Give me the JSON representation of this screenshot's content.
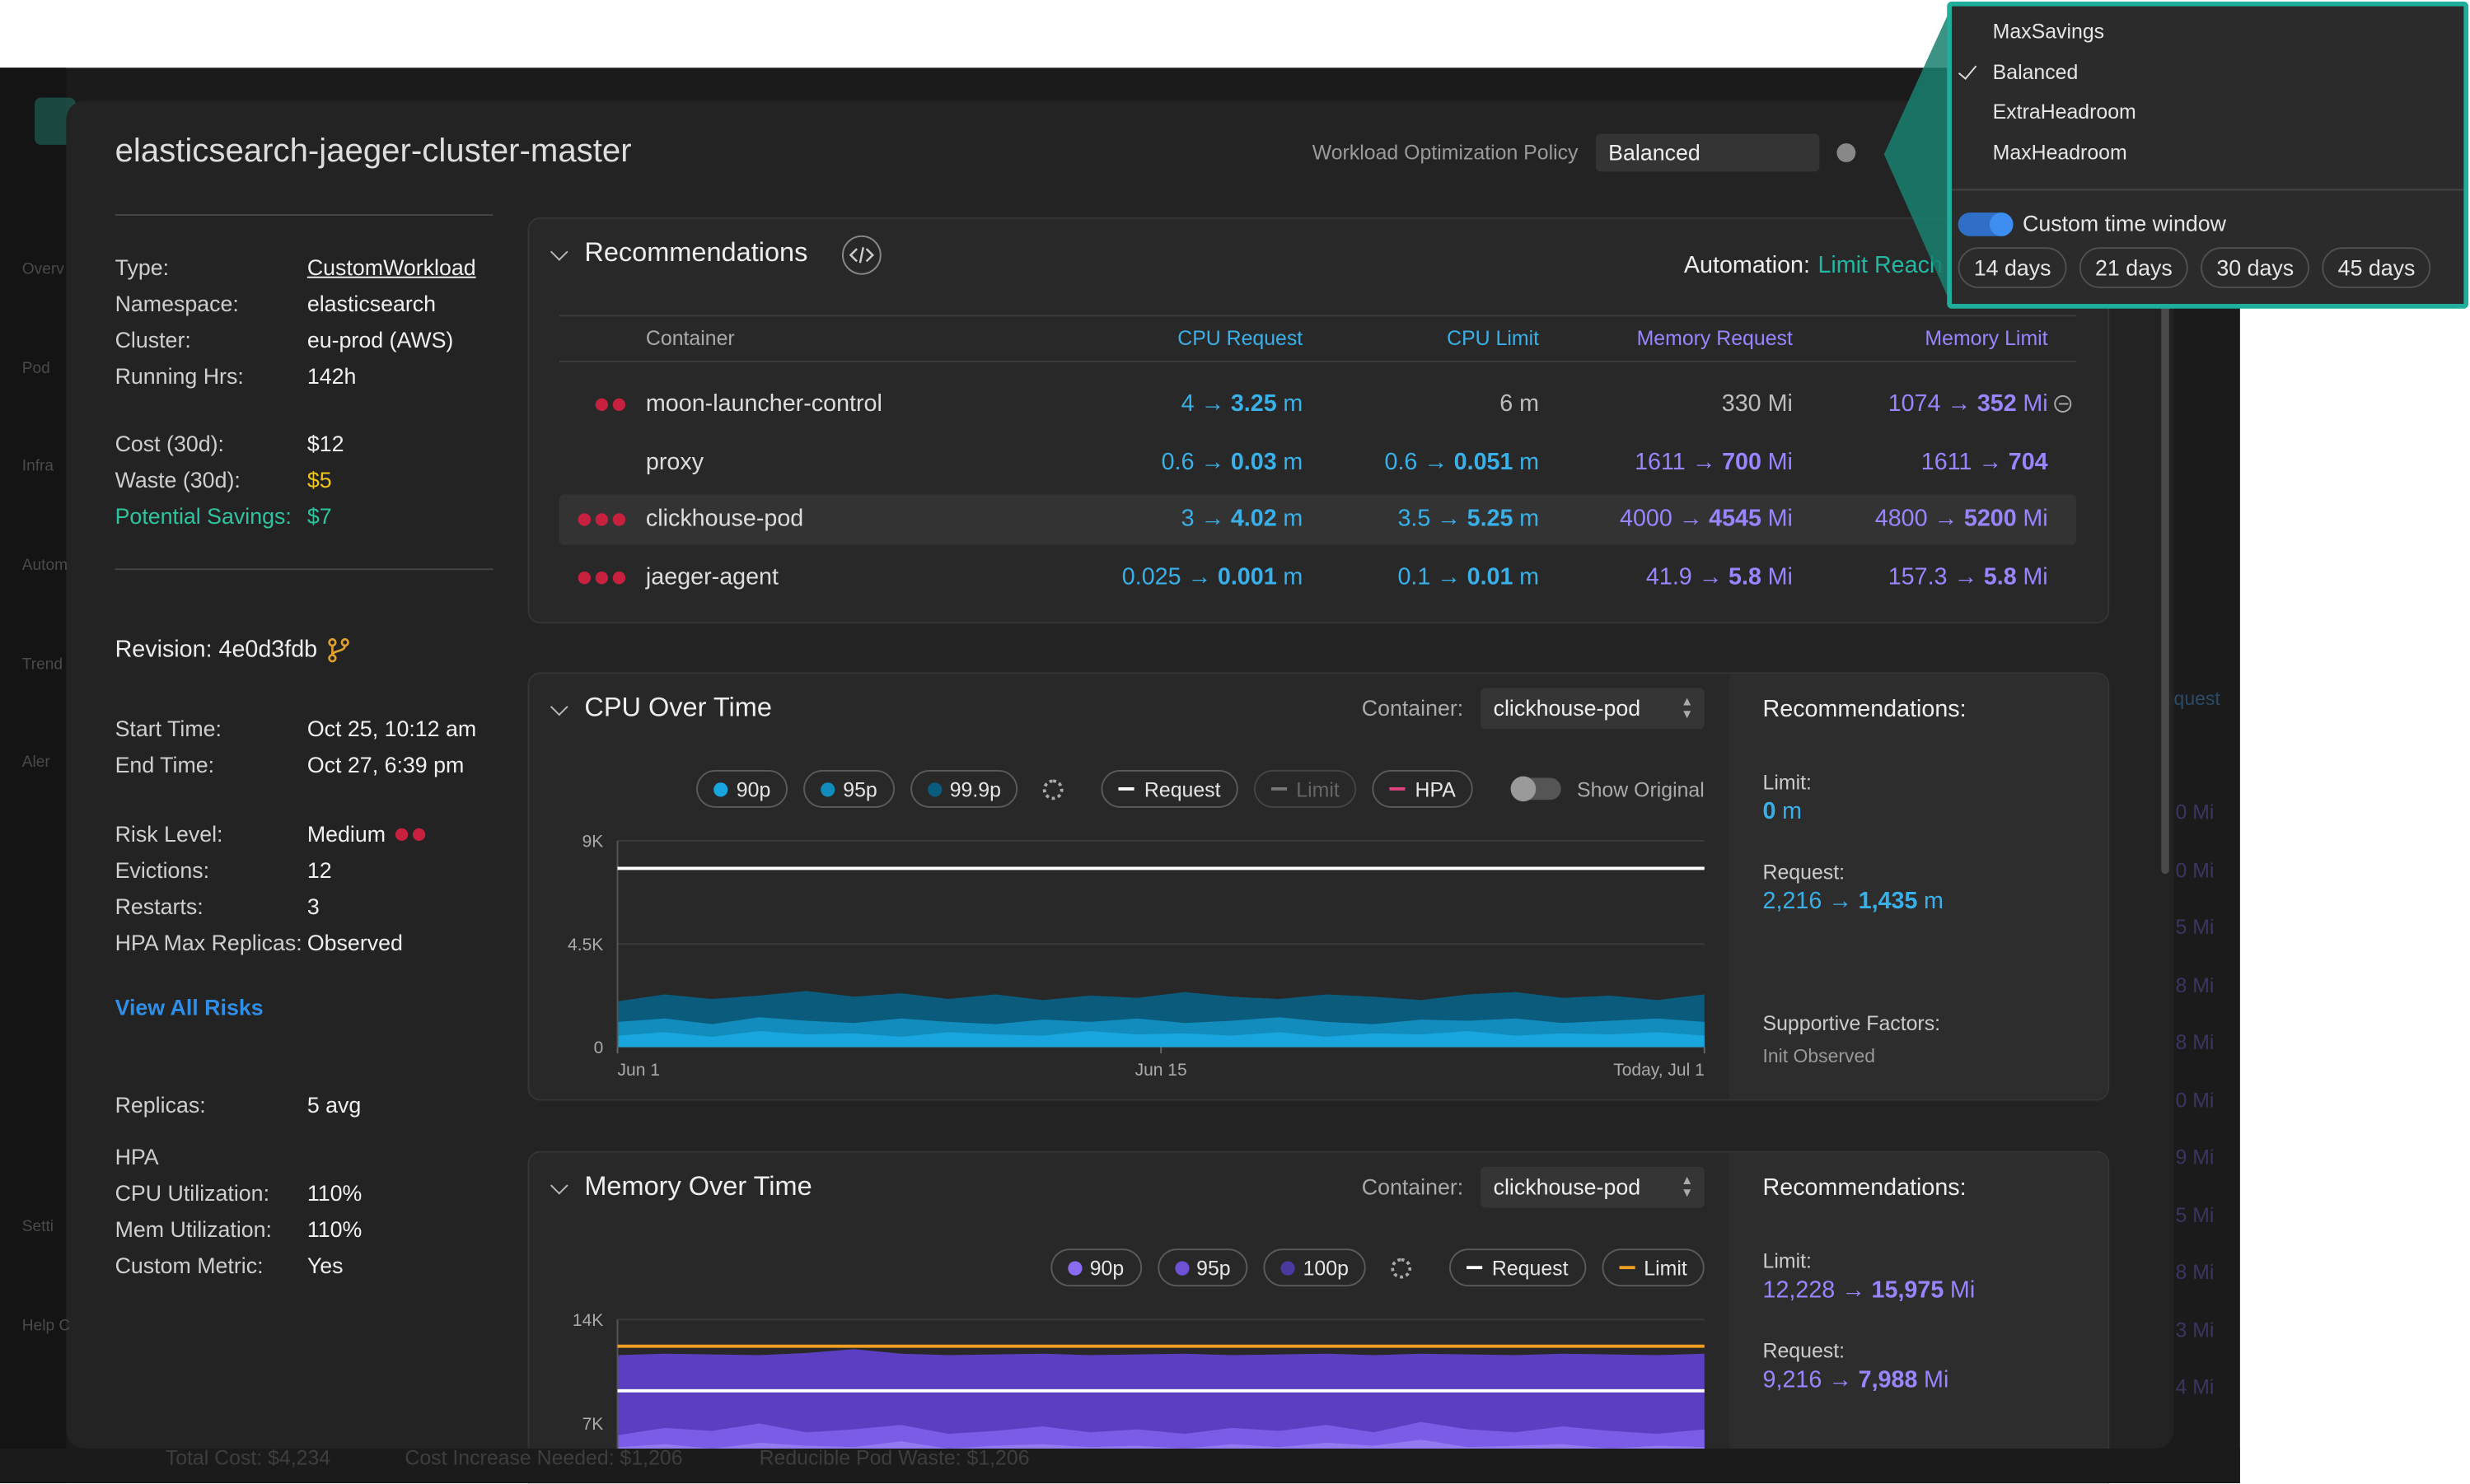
{
  "background": {
    "nav": [
      "Overv",
      "Pod",
      "Infra",
      "Autom",
      "Trend",
      "Aler",
      "Setti",
      "Help C"
    ],
    "right_header": "quest",
    "right_column": [
      "0 Mi",
      "0 Mi",
      "5 Mi",
      "8 Mi",
      "8 Mi",
      "0 Mi",
      "9 Mi",
      "5 Mi",
      "8 Mi",
      "3 Mi",
      "4 Mi"
    ],
    "footer": [
      "Total Cost: $4,234",
      "Cost Increase Needed: $1,206",
      "Reducible Pod Waste: $1,206"
    ]
  },
  "header": {
    "title": "elasticsearch-jaeger-cluster-master",
    "policy_label": "Workload Optimization Policy",
    "policy_value": "Balanced"
  },
  "policy_menu": {
    "options": [
      {
        "label": "MaxSavings"
      },
      {
        "label": "Balanced",
        "checked": true
      },
      {
        "label": "ExtraHeadroom"
      },
      {
        "label": "MaxHeadroom"
      }
    ],
    "custom_window_label": "Custom time window",
    "custom_window_on": true,
    "day_options": [
      "14 days",
      "21 days",
      "30 days",
      "45 days"
    ]
  },
  "details": {
    "summary": [
      {
        "label": "Type:",
        "value": "CustomWorkload",
        "link": true
      },
      {
        "label": "Namespace:",
        "value": "elasticsearch"
      },
      {
        "label": "Cluster:",
        "value": "eu-prod (AWS)"
      },
      {
        "label": "Running Hrs:",
        "value": "142h"
      }
    ],
    "costs": [
      {
        "label": "Cost (30d):",
        "value": "$12"
      },
      {
        "label": "Waste (30d):",
        "value": "$5",
        "value_tone": "warning"
      },
      {
        "label": "Potential Savings:",
        "value": "$7",
        "label_tone": "positive",
        "value_tone": "positive"
      }
    ],
    "revision": "Revision: 4e0d3fdb",
    "timing": [
      {
        "label": "Start Time:",
        "value": "Oct 25, 10:12 am"
      },
      {
        "label": "End Time:",
        "value": "Oct 27, 6:39 pm"
      }
    ],
    "risk": [
      {
        "label": "Risk Level:",
        "value": "Medium",
        "risk_dots": 2
      },
      {
        "label": "Evictions:",
        "value": "12"
      },
      {
        "label": "Restarts:",
        "value": "3"
      },
      {
        "label": "HPA Max Replicas:",
        "value": "Observed"
      }
    ],
    "view_all_risks": "View All Risks",
    "replicas": [
      {
        "label": "Replicas:",
        "value": "5 avg"
      }
    ],
    "hpa_heading": "HPA",
    "hpa": [
      {
        "label": "CPU Utilization:",
        "value": "110%"
      },
      {
        "label": "Mem Utilization:",
        "value": "110%"
      },
      {
        "label": "Custom Metric:",
        "value": "Yes"
      }
    ]
  },
  "recommendations": {
    "title": "Recommendations",
    "automation_label": "Automation:",
    "automation_value": "Limit Reach",
    "columns": [
      {
        "label": "Container"
      },
      {
        "label": "CPU Request",
        "tone": "cpu"
      },
      {
        "label": "CPU Limit",
        "tone": "cpu"
      },
      {
        "label": "Memory Request",
        "tone": "mem"
      },
      {
        "label": "Memory Limit",
        "tone": "mem"
      }
    ],
    "rows": [
      {
        "risk": 2,
        "container": "moon-launcher-control",
        "collapse_icon": true,
        "cells": [
          {
            "pre": "4 →",
            "bold": "3.25",
            "unit": "m"
          },
          {
            "pre": "6 m"
          },
          {
            "pre": "330 Mi"
          },
          {
            "pre": "1074 →",
            "bold": "352",
            "unit": "Mi"
          }
        ]
      },
      {
        "risk": 0,
        "container": "proxy",
        "cells": [
          {
            "pre": "0.6 →",
            "bold": "0.03",
            "unit": "m"
          },
          {
            "pre": "0.6 →",
            "bold": "0.051",
            "unit": "m"
          },
          {
            "pre": "1611 →",
            "bold": "700",
            "unit": "Mi"
          },
          {
            "pre": "1611 →",
            "bold": "704"
          }
        ]
      },
      {
        "risk": 3,
        "container": "clickhouse-pod",
        "highlighted": true,
        "cells": [
          {
            "pre": "3 →",
            "bold": "4.02",
            "unit": "m"
          },
          {
            "pre": "3.5 →",
            "bold": "5.25",
            "unit": "m"
          },
          {
            "pre": "4000 →",
            "bold": "4545",
            "unit": "Mi"
          },
          {
            "pre": "4800 →",
            "bold": "5200",
            "unit": "Mi"
          }
        ]
      },
      {
        "risk": 3,
        "container": "jaeger-agent",
        "cells": [
          {
            "pre": "0.025 →",
            "bold": "0.001",
            "unit": "m"
          },
          {
            "pre": "0.1 →",
            "bold": "0.01",
            "unit": "m"
          },
          {
            "pre": "41.9 →",
            "bold": "5.8",
            "unit": "Mi"
          },
          {
            "pre": "157.3 →",
            "bold": "5.8",
            "unit": "Mi"
          }
        ]
      }
    ]
  },
  "cpu_chart": {
    "type": "area",
    "title": "CPU Over Time",
    "container_label": "Container:",
    "container_value": "clickhouse-pod",
    "percentiles": [
      {
        "label": "90p",
        "color": "#19a6de"
      },
      {
        "label": "95p",
        "color": "#128cbc"
      },
      {
        "label": "99.9p",
        "color": "#0b5c7c"
      }
    ],
    "lines": [
      {
        "label": "Request",
        "color": "#ffffff"
      },
      {
        "label": "Limit",
        "color": "#777777",
        "disabled": true
      },
      {
        "label": "HPA",
        "color": "#e0447f"
      }
    ],
    "show_original_label": "Show Original",
    "show_original": false,
    "ylim": [
      0,
      9000
    ],
    "yticks": [
      {
        "value": 9000,
        "label": "9K"
      },
      {
        "value": 4500,
        "label": "4.5K"
      },
      0
    ],
    "xticks": [
      "Jun 1",
      "Jun 15",
      "Today, Jul 1"
    ],
    "series": [
      {
        "name": "99.9p",
        "color": "#0b5c7c",
        "values": [
          2000,
          2300,
          2100,
          2250,
          2450,
          2200,
          2350,
          2100,
          2300,
          2050,
          2250,
          2150,
          2400,
          2200,
          2100,
          2300,
          2200,
          2050,
          2300,
          2400,
          2150,
          2250,
          2050,
          2300
        ]
      },
      {
        "name": "95p",
        "color": "#128cbc",
        "values": [
          1100,
          1250,
          1000,
          1300,
          1150,
          1050,
          1250,
          1100,
          1000,
          1200,
          1100,
          1250,
          1050,
          1150,
          1300,
          1100,
          1000,
          1200,
          1150,
          1250,
          1050,
          1150,
          1250,
          1100
        ]
      },
      {
        "name": "90p",
        "color": "#19a6de",
        "values": [
          500,
          650,
          450,
          700,
          550,
          600,
          450,
          650,
          550,
          500,
          700,
          550,
          600,
          500,
          650,
          450,
          600,
          550,
          700,
          500,
          600,
          550,
          650,
          500
        ]
      }
    ],
    "request_level": 7800,
    "panel": {
      "heading": "Recommendations:",
      "limit_label": "Limit:",
      "limit": {
        "bold": "0",
        "unit": "m"
      },
      "request_label": "Request:",
      "request": {
        "pre": "2,216 →",
        "bold": "1,435",
        "unit": "m"
      },
      "supportive_label": "Supportive Factors:",
      "supportive_value": "Init Observed"
    }
  },
  "memory_chart": {
    "type": "area",
    "title": "Memory Over Time",
    "container_label": "Container:",
    "container_value": "clickhouse-pod",
    "percentiles": [
      {
        "label": "90p",
        "color": "#8b6cf0"
      },
      {
        "label": "95p",
        "color": "#6e52d6"
      },
      {
        "label": "100p",
        "color": "#4a3aa0"
      }
    ],
    "lines": [
      {
        "label": "Request",
        "color": "#ffffff"
      },
      {
        "label": "Limit",
        "color": "#f0a020"
      }
    ],
    "ylim": [
      0,
      14000
    ],
    "yticks": [
      {
        "value": 14000,
        "label": "14K"
      },
      {
        "value": 7000,
        "label": "7K"
      }
    ],
    "xticks": [],
    "series": [
      {
        "name": "100p",
        "color": "#5b3fc0",
        "values": [
          11600,
          11700,
          11650,
          11600,
          11750,
          12000,
          11700,
          11600,
          11650,
          11700,
          11600,
          11650,
          11700,
          11600,
          11650,
          11700,
          11600,
          11700,
          11650,
          11600,
          11700,
          11650,
          11600,
          11700
        ]
      },
      {
        "name": "95p",
        "color": "#7a5ce6",
        "values": [
          6200,
          6700,
          6500,
          7000,
          6400,
          6600,
          6900,
          6300,
          6500,
          6800,
          6400,
          6600,
          6300,
          6700,
          6500,
          6900,
          6400,
          7100,
          6600,
          6400,
          6800,
          6500,
          6300,
          6600
        ]
      },
      {
        "name": "90p",
        "color": "#9379f2",
        "values": [
          5400,
          5600,
          5300,
          5700,
          5500,
          5400,
          5800,
          5300,
          5500,
          5600,
          5400,
          5500,
          5300,
          5600,
          5400,
          5700,
          5500,
          5900,
          5400,
          5500,
          5600,
          5300,
          5500,
          5400
        ]
      }
    ],
    "request_level": 9200,
    "limit_level": 12200,
    "panel": {
      "heading": "Recommendations:",
      "limit_label": "Limit:",
      "limit": {
        "pre": "12,228 →",
        "bold": "15,975",
        "unit": "Mi"
      },
      "request_label": "Request:",
      "request": {
        "pre": "9,216 →",
        "bold": "7,988",
        "unit": "Mi"
      }
    }
  }
}
